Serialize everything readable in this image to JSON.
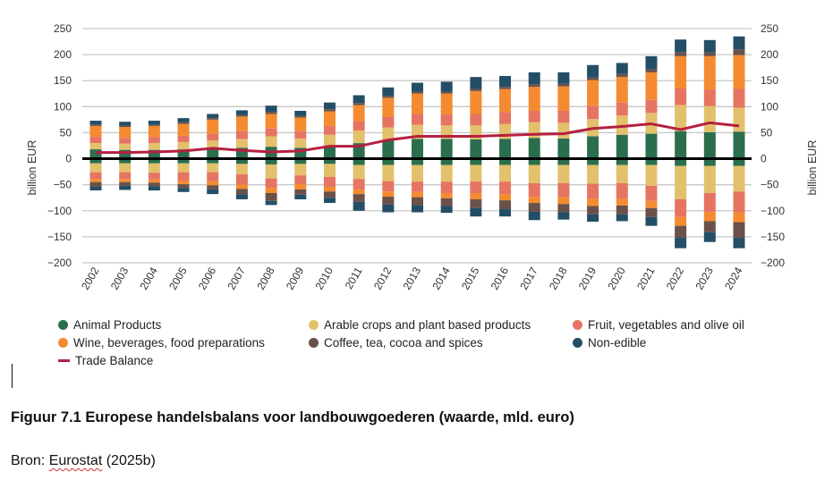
{
  "chart_data": {
    "type": "bar",
    "stacked": true,
    "ylabel": "billion EUR",
    "y2label": "billion EUR",
    "ylim": [
      -200,
      250
    ],
    "yticks": [
      250,
      200,
      150,
      100,
      50,
      0,
      -50,
      -100,
      -150,
      -200
    ],
    "grid": true,
    "legend_position": "bottom",
    "categories": [
      "2002",
      "2003",
      "2004",
      "2005",
      "2006",
      "2007",
      "2008",
      "2009",
      "2010",
      "2011",
      "2012",
      "2013",
      "2014",
      "2015",
      "2016",
      "2017",
      "2018",
      "2019",
      "2020",
      "2021",
      "2022",
      "2023",
      "2024"
    ],
    "series": [
      {
        "name": "Animal Products",
        "color": "#2b6e4e",
        "exports": [
          18,
          17,
          17,
          18,
          20,
          21,
          23,
          21,
          24,
          30,
          35,
          38,
          38,
          37,
          38,
          40,
          39,
          43,
          46,
          48,
          53,
          51,
          52
        ],
        "imports": [
          -9,
          -9,
          -9,
          -9,
          -9,
          -10,
          -11,
          -10,
          -10,
          -12,
          -12,
          -12,
          -12,
          -12,
          -12,
          -12,
          -12,
          -12,
          -12,
          -12,
          -14,
          -14,
          -14
        ]
      },
      {
        "name": "Arable crops and plant based products",
        "color": "#e3c06c",
        "exports": [
          12,
          12,
          13,
          14,
          15,
          17,
          20,
          18,
          22,
          24,
          25,
          27,
          26,
          27,
          29,
          30,
          30,
          33,
          37,
          40,
          50,
          50,
          46
        ],
        "imports": [
          -17,
          -17,
          -18,
          -17,
          -17,
          -20,
          -27,
          -22,
          -25,
          -27,
          -31,
          -32,
          -32,
          -32,
          -32,
          -35,
          -35,
          -36,
          -35,
          -40,
          -64,
          -52,
          -49
        ]
      },
      {
        "name": "Fruit, vegetables and olive oil",
        "color": "#e67462",
        "exports": [
          12,
          11,
          12,
          12,
          13,
          15,
          15,
          14,
          16,
          18,
          20,
          21,
          21,
          22,
          23,
          22,
          23,
          26,
          25,
          25,
          32,
          32,
          36
        ],
        "imports": [
          -13,
          -13,
          -13,
          -17,
          -17,
          -20,
          -18,
          -17,
          -19,
          -20,
          -20,
          -20,
          -22,
          -22,
          -24,
          -26,
          -27,
          -29,
          -30,
          -29,
          -34,
          -36,
          -40
        ]
      },
      {
        "name": "Wine, beverages, food preparations",
        "color": "#f58b30",
        "exports": [
          21,
          21,
          21,
          23,
          27,
          28,
          28,
          26,
          29,
          31,
          37,
          39,
          40,
          44,
          44,
          46,
          47,
          49,
          49,
          53,
          62,
          64,
          65
        ],
        "imports": [
          -6,
          -6,
          -6,
          -6,
          -8,
          -8,
          -10,
          -10,
          -9,
          -9,
          -10,
          -10,
          -10,
          -12,
          -12,
          -12,
          -13,
          -14,
          -13,
          -14,
          -17,
          -18,
          -19
        ]
      },
      {
        "name": "Coffee, tea, cocoa and spices",
        "color": "#6a5149",
        "exports": [
          2,
          2,
          2,
          3,
          3,
          3,
          4,
          3,
          4,
          4,
          4,
          4,
          4,
          4,
          4,
          5,
          5,
          5,
          6,
          6,
          8,
          7,
          11
        ],
        "imports": [
          -8,
          -7,
          -7,
          -7,
          -8,
          -10,
          -15,
          -10,
          -12,
          -15,
          -15,
          -15,
          -15,
          -17,
          -17,
          -17,
          -16,
          -16,
          -17,
          -17,
          -23,
          -21,
          -30
        ]
      },
      {
        "name": "Non-edible",
        "color": "#244e66",
        "exports": [
          8,
          8,
          8,
          8,
          8,
          9,
          12,
          10,
          13,
          15,
          16,
          17,
          19,
          23,
          21,
          23,
          22,
          24,
          21,
          25,
          24,
          24,
          25
        ],
        "imports": [
          -8,
          -8,
          -8,
          -8,
          -9,
          -10,
          -8,
          -9,
          -10,
          -17,
          -15,
          -14,
          -13,
          -16,
          -14,
          -16,
          -14,
          -14,
          -13,
          -17,
          -20,
          -19,
          -20
        ]
      }
    ],
    "line": {
      "name": "Trade Balance",
      "color": "#b5203f",
      "values": [
        12,
        12,
        13,
        15,
        20,
        16,
        13,
        15,
        24,
        24,
        36,
        43,
        43,
        43,
        45,
        47,
        48,
        58,
        62,
        67,
        56,
        69,
        63
      ]
    }
  },
  "legend": {
    "items": [
      {
        "label": "Animal Products",
        "color": "#2b6e4e"
      },
      {
        "label": "Arable crops and plant based products",
        "color": "#e3c06c"
      },
      {
        "label": "Fruit, vegetables and olive oil",
        "color": "#e67462"
      },
      {
        "label": "Wine, beverages, food preparations",
        "color": "#f58b30"
      },
      {
        "label": "Coffee, tea, cocoa and spices",
        "color": "#6a5149"
      },
      {
        "label": "Non-edible",
        "color": "#244e66"
      },
      {
        "label": "Trade Balance",
        "color": "#b5203f"
      }
    ]
  },
  "caption": "Figuur 7.1 Europese handelsbalans voor landbouwgoederen (waarde, mld. euro)",
  "source": {
    "prefix": "Bron: ",
    "name": "Eurostat",
    "suffix": " (2025b)"
  }
}
